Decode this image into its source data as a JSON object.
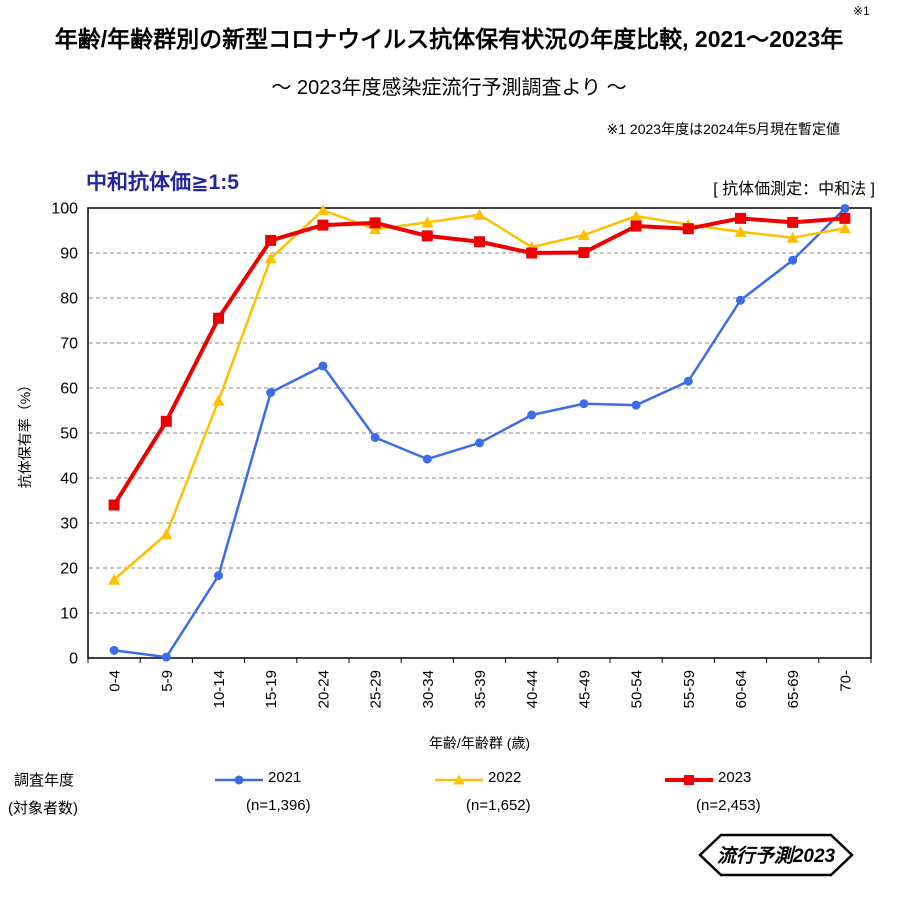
{
  "note_marker": "※1",
  "title": "年齢/年齢群別の新型コロナウイルス抗体保有状況の年度比較, 2021～2023年",
  "subtitle": "～ 2023年度感染症流行予測調査より ～",
  "footnote": "※1  2023年度は2024年5月現在暫定値",
  "panel": {
    "header_left": "中和抗体価≧1:5",
    "header_right": "[ 抗体価測定：中和法 ]"
  },
  "legend": {
    "row1_label": "調査年度",
    "row2_label": "(対象者数)"
  },
  "badge_label": "流行予測2023",
  "chart_data": {
    "type": "line",
    "title": "中和抗体価≧1:5",
    "xlabel": "年齢/年齢群 (歳)",
    "ylabel": "抗体保有率（%）",
    "ylim": [
      0,
      100
    ],
    "ytick_step": 10,
    "grid": "horizontal-dashed",
    "legend_position": "bottom",
    "categories": [
      "0-4",
      "5-9",
      "10-14",
      "15-19",
      "20-24",
      "25-29",
      "30-34",
      "35-39",
      "40-44",
      "45-49",
      "50-54",
      "55-59",
      "60-64",
      "65-69",
      "70-"
    ],
    "series": [
      {
        "name": "2021",
        "n_label": "(n=1,396)",
        "color": "#3D6CE8",
        "marker": "circle",
        "line_width": 2.5,
        "values": [
          1.7,
          0.2,
          18.3,
          59.0,
          64.9,
          49.0,
          44.2,
          47.8,
          54.0,
          56.5,
          56.2,
          61.5,
          79.5,
          88.4,
          99.9
        ]
      },
      {
        "name": "2022",
        "n_label": "(n=1,652)",
        "color": "#FFC000",
        "marker": "triangle",
        "line_width": 2.5,
        "values": [
          17.4,
          27.5,
          57.2,
          88.8,
          99.5,
          95.3,
          96.8,
          98.5,
          91.3,
          94.0,
          98.2,
          96.3,
          94.7,
          93.4,
          95.5
        ]
      },
      {
        "name": "2023",
        "n_label": "(n=2,453)",
        "color": "#EC0000",
        "marker": "square",
        "line_width": 4,
        "values": [
          34.0,
          52.6,
          75.5,
          92.8,
          96.2,
          96.7,
          93.8,
          92.5,
          90.0,
          90.1,
          96.0,
          95.4,
          97.7,
          96.8,
          97.7
        ]
      }
    ]
  }
}
